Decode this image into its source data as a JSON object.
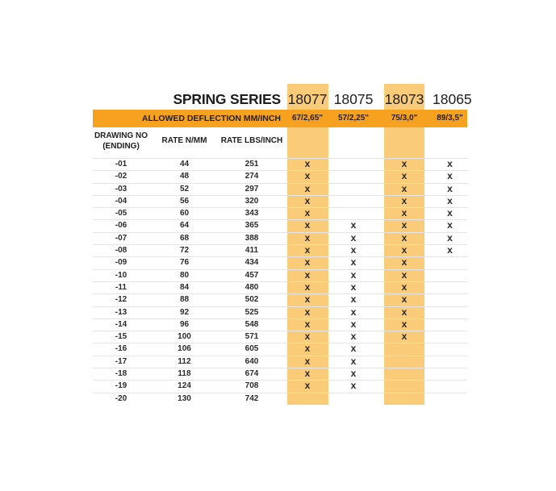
{
  "colors": {
    "band_orange": "#F7A120",
    "stripe_orange": "#FACB79",
    "row_line": "#E4E4E4",
    "text_dark": "#1E1E1E"
  },
  "table": {
    "title": "SPRING SERIES",
    "deflection_label": "ALLOWED DEFLECTION MM/INCH",
    "left_columns": [
      {
        "line1": "DRAWING NO",
        "line2": "(ENDING)"
      },
      {
        "line1": "RATE N/MM",
        "line2": ""
      },
      {
        "line1": "RATE LBS/INCH",
        "line2": ""
      }
    ],
    "series": [
      {
        "name": "18077",
        "deflection": "67/2,65\"",
        "highlighted": true
      },
      {
        "name": "18075",
        "deflection": "57/2,25\"",
        "highlighted": false
      },
      {
        "name": "18073",
        "deflection": "75/3,0\"",
        "highlighted": true
      },
      {
        "name": "18065",
        "deflection": "89/3,5\"",
        "highlighted": false
      }
    ],
    "rows": [
      {
        "ending": "-01",
        "rate_n_mm": "44",
        "rate_lbs_inch": "251",
        "marks": [
          "x",
          "",
          "x",
          "x"
        ]
      },
      {
        "ending": "-02",
        "rate_n_mm": "48",
        "rate_lbs_inch": "274",
        "marks": [
          "x",
          "",
          "x",
          "x"
        ]
      },
      {
        "ending": "-03",
        "rate_n_mm": "52",
        "rate_lbs_inch": "297",
        "marks": [
          "x",
          "",
          "x",
          "x"
        ]
      },
      {
        "ending": "-04",
        "rate_n_mm": "56",
        "rate_lbs_inch": "320",
        "marks": [
          "x",
          "",
          "x",
          "x"
        ]
      },
      {
        "ending": "-05",
        "rate_n_mm": "60",
        "rate_lbs_inch": "343",
        "marks": [
          "x",
          "",
          "x",
          "x"
        ]
      },
      {
        "ending": "-06",
        "rate_n_mm": "64",
        "rate_lbs_inch": "365",
        "marks": [
          "x",
          "x",
          "x",
          "x"
        ]
      },
      {
        "ending": "-07",
        "rate_n_mm": "68",
        "rate_lbs_inch": "388",
        "marks": [
          "x",
          "x",
          "x",
          "x"
        ]
      },
      {
        "ending": "-08",
        "rate_n_mm": "72",
        "rate_lbs_inch": "411",
        "marks": [
          "x",
          "x",
          "x",
          "x"
        ]
      },
      {
        "ending": "-09",
        "rate_n_mm": "76",
        "rate_lbs_inch": "434",
        "marks": [
          "x",
          "x",
          "x",
          ""
        ]
      },
      {
        "ending": "-10",
        "rate_n_mm": "80",
        "rate_lbs_inch": "457",
        "marks": [
          "x",
          "x",
          "x",
          ""
        ]
      },
      {
        "ending": "-11",
        "rate_n_mm": "84",
        "rate_lbs_inch": "480",
        "marks": [
          "x",
          "x",
          "x",
          ""
        ]
      },
      {
        "ending": "-12",
        "rate_n_mm": "88",
        "rate_lbs_inch": "502",
        "marks": [
          "x",
          "x",
          "x",
          ""
        ]
      },
      {
        "ending": "-13",
        "rate_n_mm": "92",
        "rate_lbs_inch": "525",
        "marks": [
          "x",
          "x",
          "x",
          ""
        ]
      },
      {
        "ending": "-14",
        "rate_n_mm": "96",
        "rate_lbs_inch": "548",
        "marks": [
          "x",
          "x",
          "x",
          ""
        ]
      },
      {
        "ending": "-15",
        "rate_n_mm": "100",
        "rate_lbs_inch": "571",
        "marks": [
          "x",
          "x",
          "x",
          ""
        ]
      },
      {
        "ending": "-16",
        "rate_n_mm": "106",
        "rate_lbs_inch": "605",
        "marks": [
          "x",
          "x",
          "",
          ""
        ]
      },
      {
        "ending": "-17",
        "rate_n_mm": "112",
        "rate_lbs_inch": "640",
        "marks": [
          "x",
          "x",
          "",
          ""
        ]
      },
      {
        "ending": "-18",
        "rate_n_mm": "118",
        "rate_lbs_inch": "674",
        "marks": [
          "x",
          "x",
          "",
          ""
        ]
      },
      {
        "ending": "-19",
        "rate_n_mm": "124",
        "rate_lbs_inch": "708",
        "marks": [
          "x",
          "x",
          "",
          ""
        ]
      },
      {
        "ending": "-20",
        "rate_n_mm": "130",
        "rate_lbs_inch": "742",
        "marks": [
          "",
          "",
          "",
          ""
        ]
      }
    ]
  }
}
